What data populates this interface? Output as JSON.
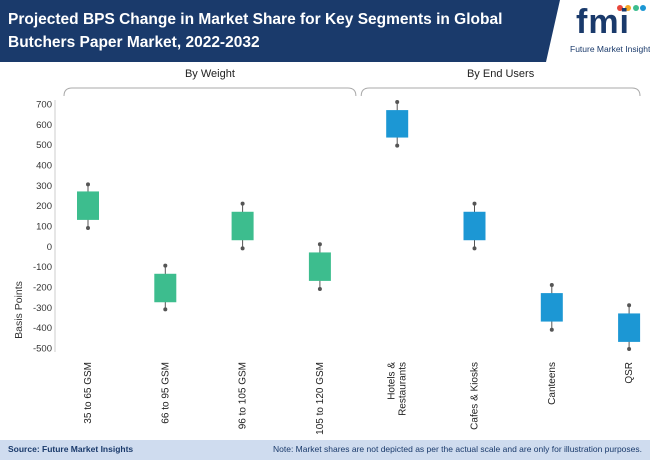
{
  "header": {
    "title": "Projected BPS Change in Market Share for Key Segments in Global Butchers Paper Market, 2022-2032",
    "logo_text": "fmi",
    "logo_subtitle": "Future Market Insights"
  },
  "footer": {
    "source": "Source: Future Market Insights",
    "note": "Note: Market shares are not depicted as per the actual scale and are only for illustration purposes."
  },
  "colors": {
    "header_bg": "#1a3a6b",
    "footer_bg": "#cfdcef",
    "weight_box": "#3dbd8e",
    "end_user_box": "#1c97d4",
    "whisker": "#555555"
  },
  "chart_data": {
    "type": "box",
    "title": "Projected BPS Change in Market Share for Key Segments in Global Butchers Paper Market, 2022-2032",
    "ylabel": "Basis Points",
    "ylim": [
      -500,
      700
    ],
    "yticks": [
      700,
      600,
      500,
      400,
      300,
      200,
      100,
      0,
      -100,
      -200,
      -300,
      -400,
      -500
    ],
    "grid": false,
    "groups": [
      {
        "name": "By Weight",
        "categories": [
          "35 to 65 GSM",
          "66 to 95 GSM",
          "96 to 105 GSM",
          "105 to 120 GSM"
        ],
        "color": "#3dbd8e"
      },
      {
        "name": "By End Users",
        "categories": [
          "Hotels & Restaurants",
          "Cafes & Kiosks",
          "Canteens",
          "QSR"
        ],
        "color": "#1c97d4"
      }
    ],
    "categories": [
      "35 to 65 GSM",
      "66 to 95 GSM",
      "96 to 105 GSM",
      "105 to 120 GSM",
      "Hotels & Restaurants",
      "Cafes & Kiosks",
      "Canteens",
      "QSR"
    ],
    "category_lines": [
      [
        "35 to 65 GSM"
      ],
      [
        "66 to 95 GSM"
      ],
      [
        "96 to 105 GSM"
      ],
      [
        "105 to 120 GSM"
      ],
      [
        "Hotels &",
        "Restaurants"
      ],
      [
        "Cafes & Kiosks"
      ],
      [
        "Canteens"
      ],
      [
        "QSR"
      ]
    ],
    "boxes": [
      {
        "category": "35 to 65 GSM",
        "low": 90,
        "q1": 130,
        "q3": 270,
        "high": 305
      },
      {
        "category": "66 to 95 GSM",
        "low": -310,
        "q1": -275,
        "q3": -135,
        "high": -95
      },
      {
        "category": "96 to 105 GSM",
        "low": -10,
        "q1": 30,
        "q3": 170,
        "high": 210
      },
      {
        "category": "105 to 120 GSM",
        "low": -210,
        "q1": -170,
        "q3": -30,
        "high": 10
      },
      {
        "category": "Hotels & Restaurants",
        "low": 495,
        "q1": 535,
        "q3": 670,
        "high": 710
      },
      {
        "category": "Cafes & Kiosks",
        "low": -10,
        "q1": 30,
        "q3": 170,
        "high": 210
      },
      {
        "category": "Canteens",
        "low": -410,
        "q1": -370,
        "q3": -230,
        "high": -190
      },
      {
        "category": "QSR",
        "low": -505,
        "q1": -470,
        "q3": -330,
        "high": -290
      }
    ]
  }
}
